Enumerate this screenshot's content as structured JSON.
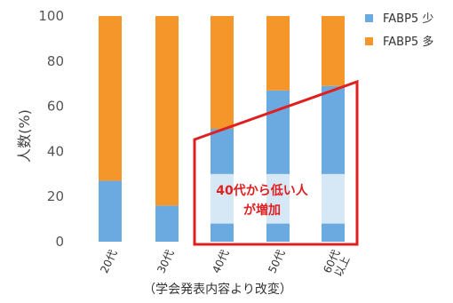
{
  "chart_data": {
    "type": "bar",
    "stacked": true,
    "categories": [
      "20代",
      "30代",
      "40代",
      "50代",
      "60代\n以上"
    ],
    "series": [
      {
        "name": "FABP5 少",
        "color": "#6aaae0",
        "values": [
          27,
          16,
          50,
          67,
          69
        ]
      },
      {
        "name": "FABP5 多",
        "color": "#f5962a",
        "values": [
          73,
          84,
          50,
          33,
          31
        ]
      }
    ],
    "highlight_band": {
      "from": 8,
      "to": 30,
      "color": "#d6e7f6",
      "categories": [
        "40代",
        "50代",
        "60代\n以上"
      ]
    },
    "ylabel": "人数(%)",
    "ylim": [
      0,
      100
    ],
    "yticks": [
      0,
      20,
      40,
      60,
      80,
      100
    ],
    "legend_position": "top-right",
    "annotation": {
      "lines": [
        "40代から低い人",
        "が増加"
      ],
      "color": "#e02020"
    },
    "source_note": "（学会発表内容より改変）"
  }
}
